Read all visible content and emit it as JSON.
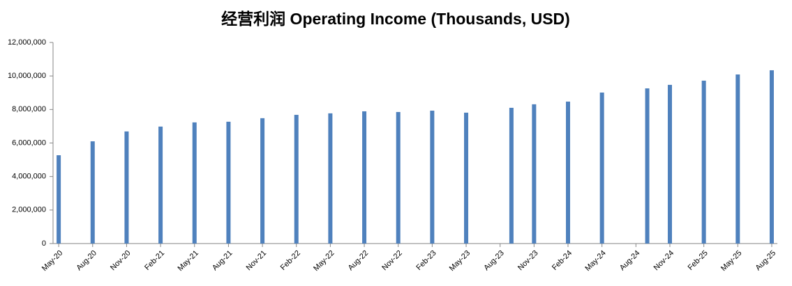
{
  "chart_data": {
    "type": "bar",
    "title": "经营利润 Operating Income (Thousands, USD)",
    "categories": [
      "May-20",
      null,
      null,
      "Aug-20",
      null,
      null,
      "Nov-20",
      null,
      null,
      "Feb-21",
      null,
      null,
      "May-21",
      null,
      null,
      "Aug-21",
      null,
      null,
      "Nov-21",
      null,
      null,
      "Feb-22",
      null,
      null,
      "May-22",
      null,
      null,
      "Aug-22",
      null,
      null,
      "Nov-22",
      null,
      null,
      "Feb-23",
      null,
      null,
      "May-23",
      null,
      null,
      "Aug-23",
      null,
      null,
      "Nov-23",
      null,
      null,
      "Feb-24",
      null,
      null,
      "May-24",
      null,
      null,
      "Aug-24",
      null,
      null,
      "Nov-24",
      null,
      null,
      "Feb-25",
      null,
      null,
      "May-25",
      null,
      null,
      "Aug-25"
    ],
    "values": [
      5270000,
      null,
      null,
      6100000,
      null,
      null,
      6690000,
      null,
      null,
      6980000,
      null,
      null,
      7230000,
      null,
      null,
      7270000,
      null,
      null,
      7480000,
      null,
      null,
      7680000,
      null,
      null,
      7770000,
      null,
      null,
      7890000,
      null,
      null,
      7850000,
      null,
      null,
      7930000,
      null,
      null,
      7810000,
      null,
      null,
      null,
      8100000,
      null,
      8310000,
      null,
      null,
      8470000,
      null,
      null,
      9010000,
      null,
      null,
      null,
      9260000,
      null,
      9470000,
      null,
      null,
      9720000,
      null,
      null,
      10090000,
      null,
      null,
      10340000
    ],
    "color": "#4f81bd",
    "ylim": [
      0,
      12000000
    ],
    "yticks": [
      0,
      {
        "value": 2000000,
        "label": "2,000,000"
      },
      {
        "value": 4000000,
        "label": "4,000,000"
      },
      {
        "value": 6000000,
        "label": "6,000,000"
      },
      {
        "value": 8000000,
        "label": "8,000,000"
      },
      {
        "value": 10000000,
        "label": "10,000,000"
      },
      {
        "value": 12000000,
        "label": "12,000,000"
      }
    ],
    "grid": false
  }
}
